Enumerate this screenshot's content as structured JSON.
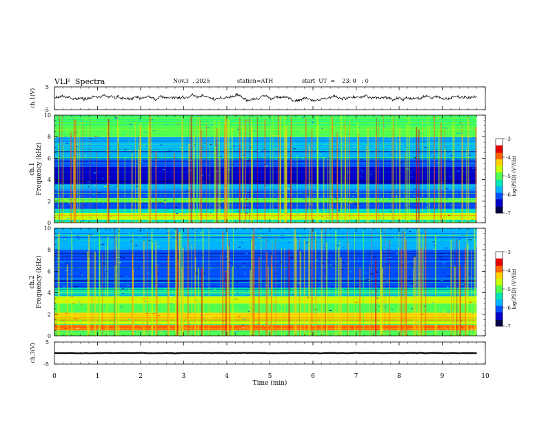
{
  "header": {
    "title": "VLF  Spectra",
    "date": "Nov.3  , 2025",
    "station": "station=ATH",
    "start": "start  UT  =    23: 0   : 0"
  },
  "colors": {
    "spectrum": [
      "#000046",
      "#0000c8",
      "#0050ff",
      "#00b4ff",
      "#00e6b4",
      "#50ff50",
      "#c8ff00",
      "#ffd200",
      "#ff6400",
      "#e60000",
      "#ffffff"
    ],
    "trace": "#000000"
  },
  "chart_data": {
    "type": "spectrogram",
    "title": "VLF  Spectra",
    "xlabel": "Time  (min)",
    "xlim": [
      0,
      10
    ],
    "xticks": [
      "0",
      "1",
      "2",
      "3",
      "4",
      "5",
      "6",
      "7",
      "8",
      "9",
      "10"
    ],
    "data_end_min": 9.8,
    "panels": [
      {
        "id": "ch1-waveform",
        "type": "line",
        "ylabel": "ch.1(V)",
        "ylim": [
          -5,
          5
        ],
        "yticks": [
          "5",
          "-5"
        ],
        "mean_level_v": 0.2,
        "fluctuation_v": 1.4
      },
      {
        "id": "ch1-spectrogram",
        "type": "heatmap",
        "ylabel_top": "ch.1",
        "ylabel": "Frequency  (kHz)",
        "ylim": [
          0,
          10
        ],
        "yticks": [
          "0",
          "2",
          "4",
          "6",
          "8",
          "10"
        ],
        "colorbar": {
          "label": "log(PSD) (V²/Hz)",
          "range": [
            -7,
            -3
          ],
          "ticks": [
            "-3",
            "-4",
            "-5",
            "-6",
            "-7"
          ]
        },
        "bands": [
          {
            "from_khz": 0.0,
            "to_khz": 0.3,
            "level": -5.2
          },
          {
            "from_khz": 0.3,
            "to_khz": 0.9,
            "level": -4.6
          },
          {
            "from_khz": 0.9,
            "to_khz": 1.3,
            "level": -5.4
          },
          {
            "from_khz": 1.3,
            "to_khz": 1.9,
            "level": -6.2
          },
          {
            "from_khz": 1.9,
            "to_khz": 2.3,
            "level": -4.9
          },
          {
            "from_khz": 2.3,
            "to_khz": 3.0,
            "level": -6.0
          },
          {
            "from_khz": 3.0,
            "to_khz": 3.6,
            "level": -5.6
          },
          {
            "from_khz": 3.6,
            "to_khz": 5.2,
            "level": -6.6
          },
          {
            "from_khz": 5.2,
            "to_khz": 6.0,
            "level": -6.1
          },
          {
            "from_khz": 6.0,
            "to_khz": 8.0,
            "level": -5.7
          },
          {
            "from_khz": 8.0,
            "to_khz": 10.0,
            "level": -5.1
          }
        ]
      },
      {
        "id": "ch2-spectrogram",
        "type": "heatmap",
        "ylabel_top": "ch.2",
        "ylabel": "Frequency  (kHz)",
        "ylim": [
          0,
          10
        ],
        "yticks": [
          "0",
          "2",
          "4",
          "6",
          "8",
          "10"
        ],
        "colorbar": {
          "label": "log(PSD) (V²/Hz)",
          "range": [
            -7,
            -3
          ],
          "ticks": [
            "-3",
            "-4",
            "-5",
            "-6",
            "-7"
          ]
        },
        "bands": [
          {
            "from_khz": 0.0,
            "to_khz": 0.5,
            "level": -5.0
          },
          {
            "from_khz": 0.5,
            "to_khz": 1.0,
            "level": -3.9
          },
          {
            "from_khz": 1.0,
            "to_khz": 1.6,
            "level": -4.8
          },
          {
            "from_khz": 1.6,
            "to_khz": 2.2,
            "level": -4.4
          },
          {
            "from_khz": 2.2,
            "to_khz": 3.0,
            "level": -5.1
          },
          {
            "from_khz": 3.0,
            "to_khz": 3.7,
            "level": -4.7
          },
          {
            "from_khz": 3.7,
            "to_khz": 4.5,
            "level": -5.4
          },
          {
            "from_khz": 4.5,
            "to_khz": 5.5,
            "level": -6.0
          },
          {
            "from_khz": 5.5,
            "to_khz": 8.0,
            "level": -6.2
          },
          {
            "from_khz": 8.0,
            "to_khz": 10.0,
            "level": -5.6
          }
        ]
      },
      {
        "id": "ch3-waveform",
        "type": "line",
        "ylabel": "ch.3(V)",
        "ylim": [
          -5,
          5
        ],
        "yticks": [
          "5",
          "-5"
        ],
        "mean_level_v": 0.0,
        "fluctuation_v": 0.15
      }
    ]
  }
}
